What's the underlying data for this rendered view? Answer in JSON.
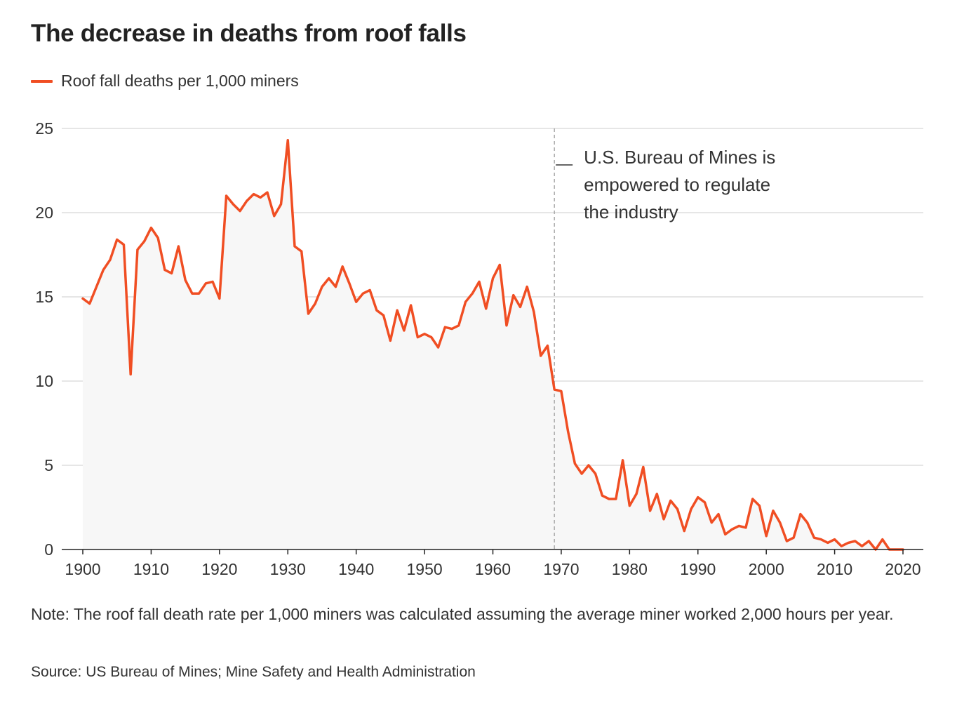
{
  "title": "The decrease in deaths from roof falls",
  "legend": {
    "label": "Roof fall deaths per 1,000 miners",
    "color": "#f04e23"
  },
  "note": "Note: The roof fall death rate per 1,000 miners was calculated assuming the average miner worked 2,000 hours per year.",
  "source": "Source: US Bureau of Mines; Mine Safety and Health Administration",
  "chart_data": {
    "type": "line",
    "title": "The decrease in deaths from roof falls",
    "xlabel": "",
    "ylabel": "",
    "xlim": [
      1900,
      2020
    ],
    "ylim": [
      0,
      25
    ],
    "x_ticks": [
      1900,
      1910,
      1920,
      1930,
      1940,
      1950,
      1960,
      1970,
      1980,
      1990,
      2000,
      2010,
      2020
    ],
    "y_ticks": [
      0,
      5,
      10,
      15,
      20,
      25
    ],
    "grid": true,
    "area_fill": "#f7f7f7",
    "line_color": "#f04e23",
    "annotation": {
      "x": 1969,
      "lines": [
        "U.S. Bureau of Mines is",
        "empowered to regulate",
        "the industry"
      ]
    },
    "series": [
      {
        "name": "Roof fall deaths per 1,000 miners",
        "x": [
          1900,
          1901,
          1902,
          1903,
          1904,
          1905,
          1906,
          1907,
          1908,
          1909,
          1910,
          1911,
          1912,
          1913,
          1914,
          1915,
          1916,
          1917,
          1918,
          1919,
          1920,
          1921,
          1922,
          1923,
          1924,
          1925,
          1926,
          1927,
          1928,
          1929,
          1930,
          1931,
          1932,
          1933,
          1934,
          1935,
          1936,
          1937,
          1938,
          1939,
          1940,
          1941,
          1942,
          1943,
          1944,
          1945,
          1946,
          1947,
          1948,
          1949,
          1950,
          1951,
          1952,
          1953,
          1954,
          1955,
          1956,
          1957,
          1958,
          1959,
          1960,
          1961,
          1962,
          1963,
          1964,
          1965,
          1966,
          1967,
          1968,
          1969,
          1970,
          1971,
          1972,
          1973,
          1974,
          1975,
          1976,
          1977,
          1978,
          1979,
          1980,
          1981,
          1982,
          1983,
          1984,
          1985,
          1986,
          1987,
          1988,
          1989,
          1990,
          1991,
          1992,
          1993,
          1994,
          1995,
          1996,
          1997,
          1998,
          1999,
          2000,
          2001,
          2002,
          2003,
          2004,
          2005,
          2006,
          2007,
          2008,
          2009,
          2010,
          2011,
          2012,
          2013,
          2014,
          2015,
          2016,
          2017,
          2018,
          2019,
          2020
        ],
        "values": [
          14.9,
          14.6,
          15.6,
          16.6,
          17.2,
          18.4,
          18.1,
          10.4,
          17.8,
          18.3,
          19.1,
          18.5,
          16.6,
          16.4,
          18.0,
          16.0,
          15.2,
          15.2,
          15.8,
          15.9,
          14.9,
          21.0,
          20.5,
          20.1,
          20.7,
          21.1,
          20.9,
          21.2,
          19.8,
          20.5,
          24.3,
          18.0,
          17.7,
          14.0,
          14.6,
          15.6,
          16.1,
          15.6,
          16.8,
          15.8,
          14.7,
          15.2,
          15.4,
          14.2,
          13.9,
          12.4,
          14.2,
          13.0,
          14.5,
          12.6,
          12.8,
          12.6,
          12.0,
          13.2,
          13.1,
          13.3,
          14.7,
          15.2,
          15.9,
          14.3,
          16.1,
          16.9,
          13.3,
          15.1,
          14.4,
          15.6,
          14.1,
          11.5,
          12.1,
          9.5,
          9.4,
          7.0,
          5.1,
          4.5,
          5.0,
          4.5,
          3.2,
          3.0,
          3.0,
          5.3,
          2.6,
          3.3,
          4.9,
          2.3,
          3.3,
          1.8,
          2.9,
          2.4,
          1.1,
          2.4,
          3.1,
          2.8,
          1.6,
          2.1,
          0.9,
          1.2,
          1.4,
          1.3,
          3.0,
          2.6,
          0.8,
          2.3,
          1.6,
          0.5,
          0.7,
          2.1,
          1.6,
          0.7,
          0.6,
          0.4,
          0.6,
          0.2,
          0.4,
          0.5,
          0.2,
          0.5,
          0.0,
          0.6,
          0.0,
          0.0,
          0.0
        ]
      }
    ]
  }
}
